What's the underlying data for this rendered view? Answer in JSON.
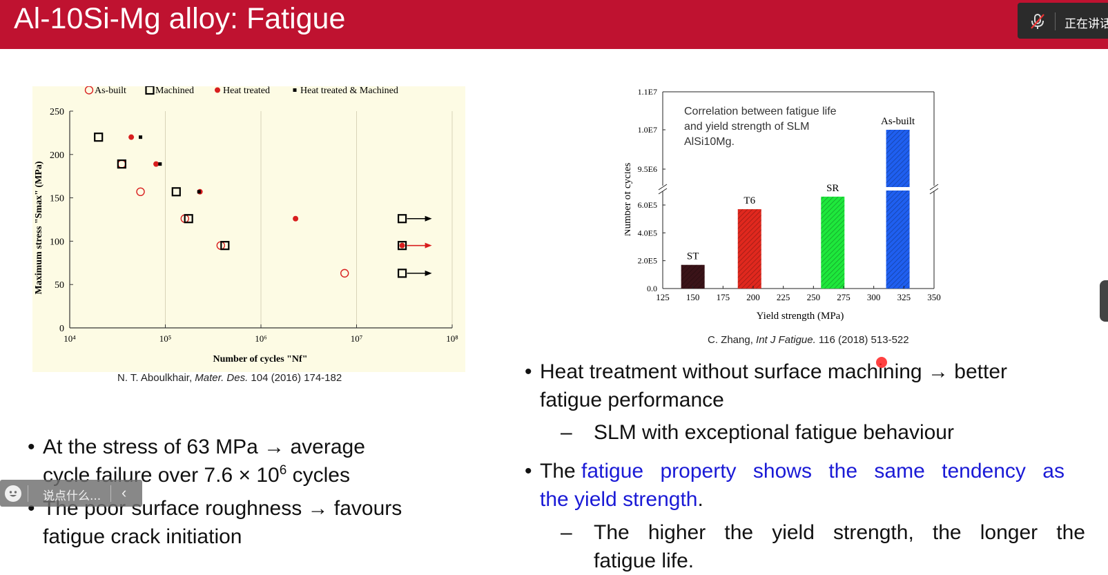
{
  "slide": {
    "title": "Al-10Si-Mg alloy: Fatigue",
    "left_citation": {
      "author": "N. T. Aboulkhair, ",
      "journal": "Mater. Des.",
      "rest": " 104 (2016) 174-182"
    },
    "right_citation": {
      "author": "C. Zhang, ",
      "journal": "Int J Fatigue.",
      "rest": " 116 (2018) 513-522"
    },
    "left_bullets": [
      {
        "line1": "At the stress of 63 MPa → average",
        "line2_pre": "cycle failure over 7.6 × 10",
        "line2_sup": "6",
        "line2_post": " cycles"
      },
      {
        "line1": "The poor surface roughness → favours",
        "line2": "fatigue crack initiation"
      }
    ],
    "right_bullets": {
      "b1_line1": "Heat treatment without surface machining → better",
      "b1_line2": "fatigue performance",
      "b1_sub": "SLM with exceptional fatigue behaviour",
      "b2_pre": "The ",
      "b2_blue1": "fatigue property shows the same tendency as",
      "b2_blue2": "the yield strength",
      "b2_post": ".",
      "b2_sub_line1": "The higher the yield strength, the longer the",
      "b2_sub_line2": "fatigue life.",
      "dash": "–",
      "dot": "•"
    }
  },
  "meeting_bar": {
    "status_text": "正在讲话",
    "mic_icon": "mic-muted-icon"
  },
  "chat_input": {
    "placeholder": "说点什么...",
    "emoji_icon": "emoji-icon",
    "collapse_icon": "chevron-left-icon"
  },
  "chart_data": [
    {
      "type": "scatter",
      "xscale": "log",
      "xlim": [
        10000,
        100000000
      ],
      "ylim": [
        0,
        250
      ],
      "xlabel": "Number of cycles \"Nf\"",
      "ylabel": "Maximum stress \"Smax\" (MPa)",
      "x_ticks": [
        "10⁴",
        "10⁵",
        "10⁶",
        "10⁷",
        "10⁸"
      ],
      "y_ticks": [
        0,
        50,
        100,
        150,
        200,
        250
      ],
      "legend": [
        "As-built",
        "Machined",
        "Heat treated",
        "Heat treated & Machined"
      ],
      "legend_position": "top",
      "background": "#fdfbe4",
      "series": [
        {
          "name": "As-built",
          "marker": "open-circle",
          "color": "#d81e1e",
          "points": [
            [
              35000,
              189
            ],
            [
              55000,
              157
            ],
            [
              160000,
              126
            ],
            [
              380000,
              95
            ],
            [
              7500000,
              63
            ]
          ]
        },
        {
          "name": "Machined",
          "marker": "open-square",
          "color": "#000000",
          "points": [
            [
              20000,
              220
            ],
            [
              35000,
              189
            ],
            [
              130000,
              157
            ],
            [
              175000,
              126
            ],
            [
              420000,
              95
            ],
            [
              30000000,
              126
            ],
            [
              30000000,
              95
            ],
            [
              30000000,
              63
            ]
          ]
        },
        {
          "name": "Heat treated",
          "marker": "filled-circle",
          "color": "#d81e1e",
          "points": [
            [
              44000,
              220
            ],
            [
              80000,
              189
            ],
            [
              230000,
              157
            ],
            [
              2300000,
              126
            ],
            [
              30000000,
              95
            ]
          ]
        },
        {
          "name": "Heat treated & Machined",
          "marker": "small-square",
          "color": "#000000",
          "points": [
            [
              55000,
              220
            ],
            [
              88000,
              189
            ],
            [
              225000,
              157
            ]
          ]
        }
      ],
      "runouts": [
        {
          "y": 126,
          "color": "#000000"
        },
        {
          "y": 95,
          "color": "#d81e1e"
        },
        {
          "y": 63,
          "color": "#000000"
        }
      ]
    },
    {
      "type": "bar",
      "annotation": "Correlation between fatigue life and yield strength of SLM AlSi10Mg.",
      "annotation_lines": [
        "Correlation between fatigue life",
        "and yield strength of SLM",
        "AlSi10Mg."
      ],
      "xlabel": "Yield strength (MPa)",
      "ylabel": "Number of cycles",
      "xlim": [
        125,
        350
      ],
      "x_ticks": [
        125,
        150,
        175,
        200,
        225,
        250,
        275,
        300,
        325,
        350
      ],
      "y_ticks_lower": [
        "0.0",
        "2.0E5",
        "4.0E5",
        "6.0E5"
      ],
      "y_ticks_upper": [
        "9.5E6",
        "1.0E7",
        "1.1E7"
      ],
      "y_break": true,
      "bars": [
        {
          "label": "ST",
          "x": 150,
          "value": 170000,
          "color": "#3a1318"
        },
        {
          "label": "T6",
          "x": 197,
          "value": 570000,
          "color": "#e0281e"
        },
        {
          "label": "SR",
          "x": 266,
          "value": 660000,
          "color": "#1ee83c"
        },
        {
          "label": "As-built",
          "x": 320,
          "value": 10000000,
          "color": "#1f5ff0"
        }
      ]
    }
  ]
}
